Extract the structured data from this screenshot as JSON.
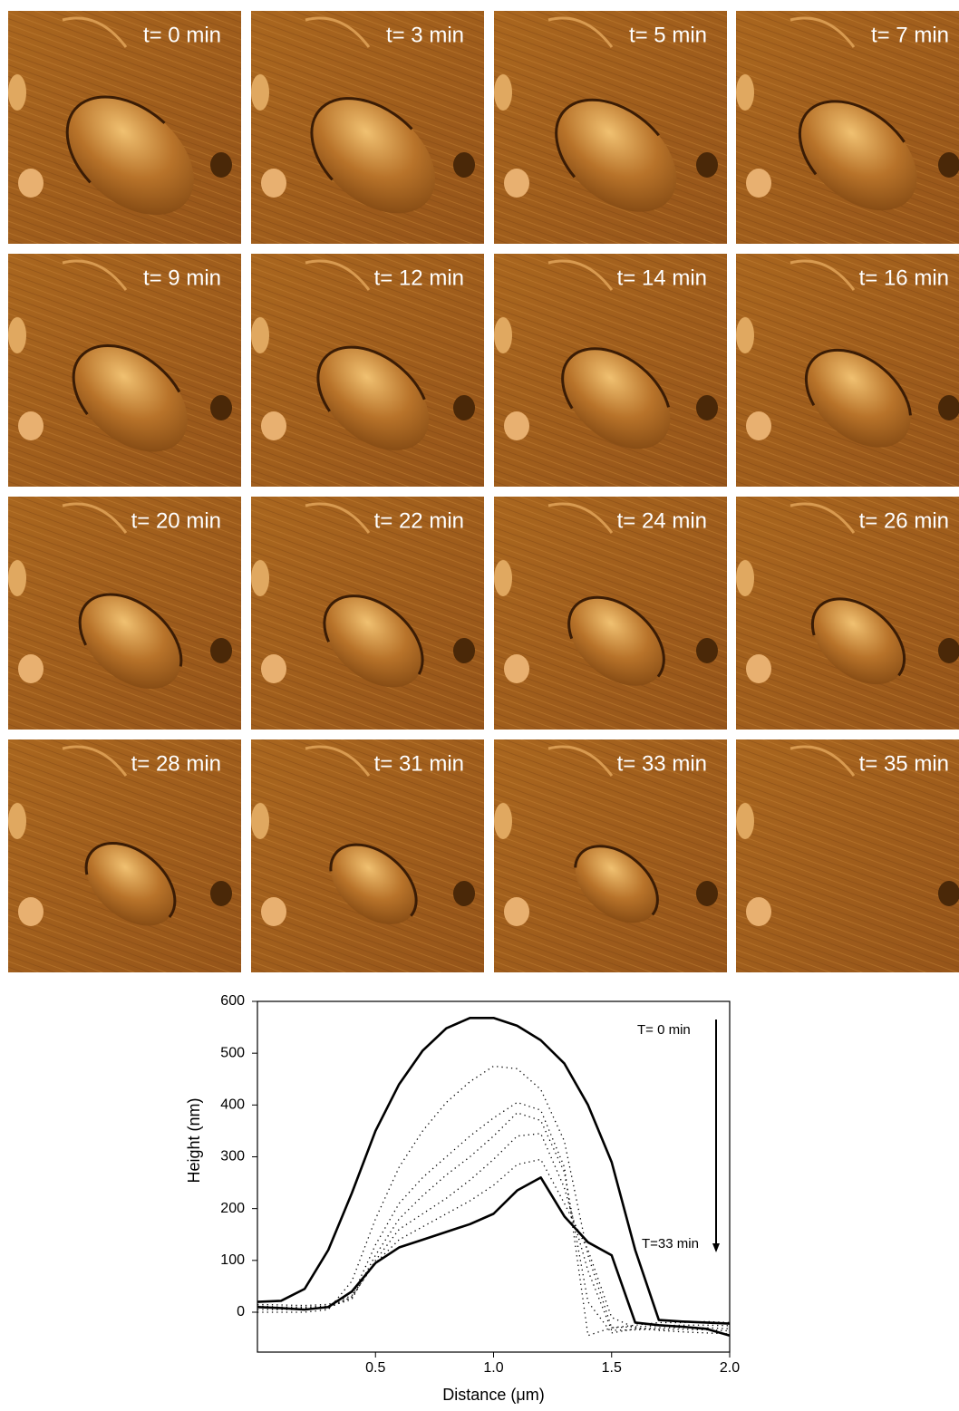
{
  "panels": [
    {
      "label": "t= 0 min"
    },
    {
      "label": "t= 3 min"
    },
    {
      "label": "t= 5 min"
    },
    {
      "label": "t= 7 min"
    },
    {
      "label": "t= 9 min"
    },
    {
      "label": "t= 12 min"
    },
    {
      "label": "t= 14 min"
    },
    {
      "label": "t= 16 min"
    },
    {
      "label": "t= 20 min"
    },
    {
      "label": "t= 22 min"
    },
    {
      "label": "t= 24 min"
    },
    {
      "label": "t= 26 min"
    },
    {
      "label": "t= 28 min"
    },
    {
      "label": "t= 31 min"
    },
    {
      "label": "t= 33 min"
    },
    {
      "label": "t= 35 min"
    }
  ],
  "chart_data": {
    "type": "line",
    "x_label": "Distance (μm)",
    "y_label": "Height (nm)",
    "annotations": [
      "T= 0  min",
      "T=33 min"
    ],
    "xlim": [
      0,
      2.0
    ],
    "ylim": [
      -77,
      600
    ],
    "xticks": [
      0.5,
      {
        "value": 1.0,
        "label": "1.0"
      },
      1.5,
      {
        "value": 2.0,
        "label": "2.0"
      }
    ],
    "yticks": [
      0,
      100,
      200,
      300,
      400,
      500,
      600
    ],
    "x": [
      0,
      0.1,
      0.2,
      0.3,
      0.4,
      0.5,
      0.6,
      0.7,
      0.8,
      0.9,
      1.0,
      1.1,
      1.2,
      1.3,
      1.4,
      1.5,
      1.6,
      1.7,
      1.8,
      1.9,
      2.0
    ],
    "series": [
      {
        "color": "#000000",
        "style": "solid",
        "values": [
          20,
          22,
          45,
          120,
          230,
          350,
          440,
          505,
          548,
          568,
          568,
          553,
          525,
          480,
          400,
          290,
          120,
          -15,
          -18,
          -20,
          -22
        ]
      },
      {
        "color": "#000000",
        "style": "dotted",
        "values": [
          0,
          0,
          0,
          5,
          60,
          180,
          280,
          350,
          405,
          445,
          475,
          470,
          430,
          330,
          110,
          -30,
          -25,
          -20,
          -20,
          -18,
          -20
        ]
      },
      {
        "color": "#000000",
        "style": "dotted",
        "values": [
          5,
          5,
          5,
          8,
          30,
          130,
          210,
          260,
          300,
          340,
          375,
          405,
          390,
          280,
          -45,
          -30,
          -28,
          -26,
          -25,
          -25,
          -26
        ]
      },
      {
        "color": "#000000",
        "style": "dotted",
        "values": [
          10,
          8,
          8,
          10,
          25,
          110,
          180,
          225,
          265,
          300,
          340,
          385,
          370,
          270,
          20,
          -40,
          -32,
          -30,
          -30,
          -30,
          -32
        ]
      },
      {
        "color": "#000000",
        "style": "dotted",
        "values": [
          12,
          10,
          10,
          12,
          28,
          100,
          160,
          190,
          220,
          255,
          295,
          340,
          345,
          240,
          80,
          -35,
          -34,
          -33,
          -33,
          -34,
          -36
        ]
      },
      {
        "color": "#000000",
        "style": "dotted",
        "values": [
          15,
          14,
          13,
          15,
          32,
          95,
          140,
          165,
          190,
          215,
          245,
          285,
          295,
          210,
          120,
          -10,
          -30,
          -35,
          -38,
          -40,
          -42
        ]
      },
      {
        "color": "#000000",
        "style": "solid",
        "values": [
          10,
          8,
          5,
          10,
          40,
          95,
          125,
          140,
          155,
          170,
          190,
          235,
          260,
          185,
          135,
          110,
          -20,
          -25,
          -28,
          -32,
          -45
        ]
      }
    ]
  }
}
